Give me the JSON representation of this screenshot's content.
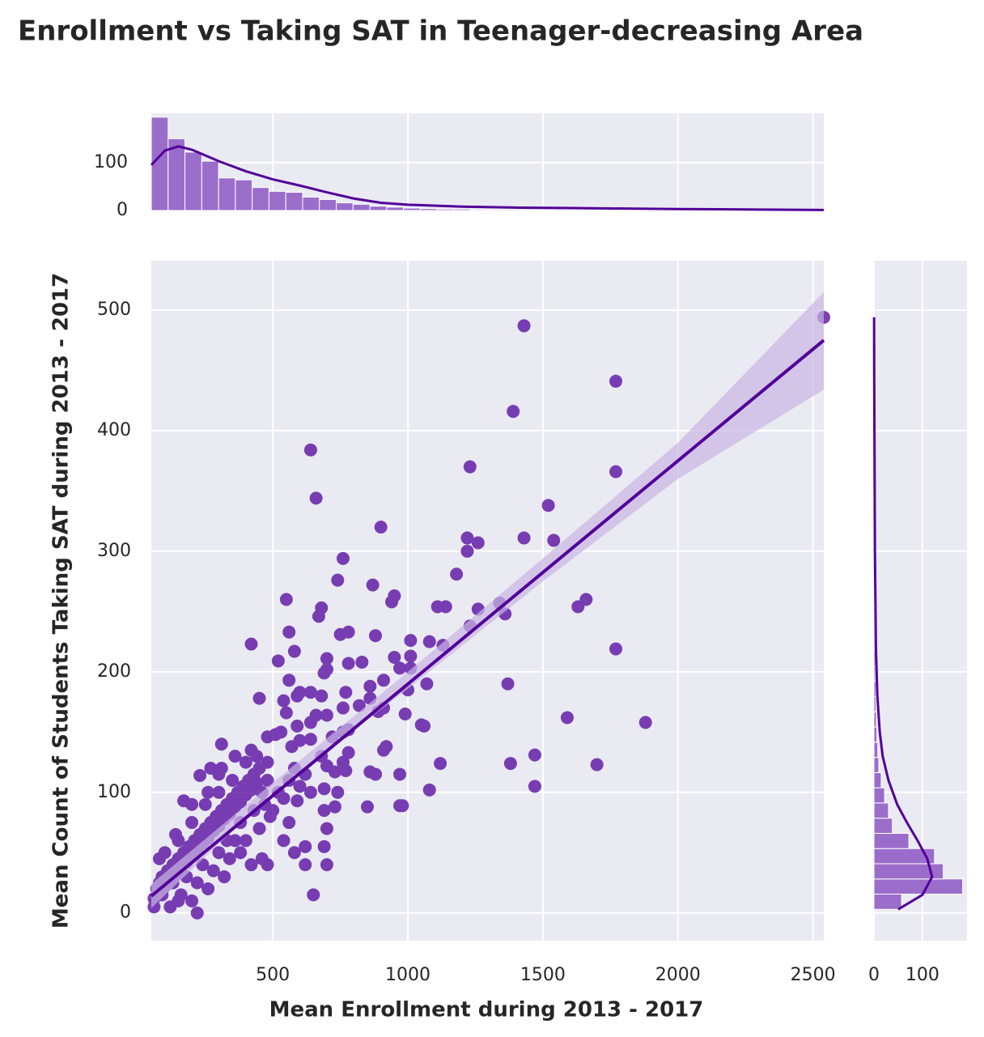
{
  "chart_data": {
    "type": "scatter",
    "title": "Enrollment vs Taking SAT in Teenager-decreasing Area",
    "xlabel": "Mean Enrollment during 2013 - 2017",
    "ylabel": "Mean Count of Students Taking SAT during 2013 - 2017",
    "color": "#5b11a3",
    "line_color": "#520099",
    "hist_color": "#9b6dcb",
    "band_color": "#c9b5e2",
    "grid": true,
    "xlim": [
      50,
      2540
    ],
    "ylim": [
      -23,
      541
    ],
    "xticks": [
      500,
      1000,
      1500,
      2000,
      2500
    ],
    "yticks": [
      0,
      100,
      200,
      300,
      400,
      500
    ],
    "x": [
      2540,
      1430,
      1770,
      1390,
      640,
      1230,
      1770,
      660,
      1520,
      900,
      1220,
      1430,
      1540,
      1260,
      1220,
      760,
      1180,
      740,
      870,
      1660,
      550,
      950,
      680,
      940,
      1110,
      1140,
      1260,
      1340,
      1630,
      1360,
      670,
      1230,
      560,
      880,
      780,
      750,
      1080,
      1010,
      1130,
      420,
      1770,
      700,
      830,
      950,
      1010,
      580,
      520,
      780,
      700,
      970,
      1010,
      560,
      600,
      640,
      1070,
      910,
      1370,
      690,
      860,
      1000,
      450,
      540,
      590,
      680,
      770,
      860,
      910,
      990,
      1050,
      1060,
      1590,
      1880,
      820,
      760,
      550,
      660,
      700,
      890,
      760,
      780,
      590,
      640,
      510,
      530,
      480,
      600,
      570,
      640,
      720,
      920,
      910,
      310,
      680,
      780,
      1120,
      1380,
      1470,
      1700,
      970,
      880,
      860,
      760,
      770,
      700,
      730,
      1080,
      1470,
      980,
      970,
      850,
      730,
      740,
      690,
      640,
      590,
      690,
      700,
      690,
      700,
      620,
      620,
      650,
      480,
      460,
      380,
      320,
      260,
      200,
      220,
      150,
      130,
      90,
      60,
      170,
      230,
      270,
      300,
      60,
      70,
      80,
      90,
      100,
      110,
      120,
      130,
      140,
      150,
      160,
      170,
      180,
      190,
      200,
      210,
      220,
      230,
      240,
      250,
      260,
      270,
      280,
      290,
      300,
      310,
      320,
      330,
      340,
      350,
      360,
      370,
      380,
      390,
      400,
      410,
      420,
      430,
      440,
      450,
      460,
      470,
      480,
      490,
      100,
      150,
      200,
      250,
      300,
      350,
      400,
      120,
      160,
      220,
      280,
      340,
      400,
      450,
      500,
      260,
      310,
      360,
      420,
      200,
      140,
      80,
      330,
      380,
      430,
      180,
      240,
      300,
      360,
      420,
      440,
      480,
      520,
      540,
      560,
      580,
      600,
      620,
      540,
      560,
      580
    ],
    "values": [
      494,
      487,
      441,
      416,
      384,
      370,
      366,
      344,
      338,
      320,
      311,
      311,
      309,
      307,
      300,
      294,
      281,
      276,
      272,
      260,
      260,
      263,
      253,
      258,
      254,
      254,
      252,
      257,
      254,
      248,
      246,
      238,
      233,
      230,
      233,
      231,
      225,
      226,
      222,
      223,
      219,
      211,
      208,
      212,
      213,
      217,
      209,
      207,
      202,
      203,
      203,
      193,
      183,
      183,
      190,
      193,
      190,
      199,
      188,
      185,
      178,
      176,
      180,
      180,
      183,
      178,
      170,
      165,
      156,
      155,
      162,
      158,
      172,
      170,
      166,
      164,
      164,
      167,
      150,
      152,
      155,
      158,
      148,
      150,
      146,
      143,
      138,
      144,
      146,
      138,
      135,
      140,
      130,
      133,
      124,
      124,
      131,
      123,
      115,
      115,
      117,
      125,
      118,
      122,
      117,
      102,
      105,
      89,
      89,
      88,
      88,
      100,
      103,
      100,
      93,
      85,
      70,
      55,
      40,
      40,
      55,
      15,
      40,
      45,
      50,
      30,
      20,
      10,
      0,
      10,
      25,
      15,
      5,
      93,
      114,
      120,
      115,
      12,
      20,
      25,
      30,
      22,
      35,
      28,
      40,
      32,
      45,
      38,
      50,
      42,
      55,
      48,
      60,
      52,
      65,
      58,
      70,
      62,
      75,
      68,
      80,
      72,
      85,
      78,
      90,
      82,
      95,
      88,
      100,
      92,
      105,
      98,
      110,
      102,
      115,
      108,
      120,
      100,
      90,
      110,
      80,
      50,
      60,
      75,
      90,
      100,
      110,
      125,
      5,
      15,
      25,
      35,
      45,
      60,
      70,
      85,
      100,
      120,
      130,
      135,
      90,
      65,
      45,
      60,
      75,
      85,
      30,
      40,
      50,
      60,
      40,
      130,
      125,
      100,
      95,
      110,
      120,
      105,
      115,
      60,
      75,
      50
    ],
    "regression": {
      "x": [
        50,
        2540
      ],
      "values": [
        14,
        475
      ],
      "ci_x": [
        50,
        500,
        1000,
        1500,
        2000,
        2540
      ],
      "ci_lower": [
        4,
        100,
        186,
        275,
        360,
        434
      ],
      "ci_upper": [
        24,
        108,
        200,
        294,
        390,
        515
      ]
    },
    "marginal_x": {
      "bins": [
        50,
        112.25,
        174.5,
        236.75,
        299,
        361.25,
        423.5,
        485.75,
        548,
        610.25,
        672.5,
        734.75,
        797,
        859.25,
        921.5,
        983.75,
        1046,
        1108.25,
        1170.5,
        1232.75,
        1295,
        1357.25,
        1419.5,
        1481.75,
        1544,
        1606.25,
        1668.5,
        1730.75,
        1793,
        1855.25,
        1917.5,
        1979.75,
        2042,
        2104.25,
        2166.5,
        2228.75,
        2291,
        2353.25,
        2415.5,
        2477.75,
        2540
      ],
      "counts": [
        195,
        150,
        122,
        103,
        68,
        64,
        48,
        40,
        38,
        28,
        23,
        16,
        13,
        9,
        7,
        5,
        4,
        3,
        3,
        2,
        2,
        2,
        1,
        1,
        2,
        1,
        1,
        1,
        1,
        0,
        1,
        0,
        0,
        0,
        0,
        0,
        0,
        0,
        0,
        1
      ],
      "ylim": [
        0,
        203
      ],
      "yticks": [
        0,
        100
      ],
      "kde_x": [
        50,
        100,
        150,
        200,
        250,
        300,
        400,
        500,
        600,
        700,
        800,
        900,
        1000,
        1200,
        1400,
        1600,
        1800,
        2000,
        2300,
        2540
      ],
      "kde_values": [
        95,
        125,
        134,
        127,
        115,
        103,
        82,
        65,
        52,
        38,
        25,
        16,
        12,
        8,
        6,
        5,
        4,
        3,
        2,
        1
      ]
    },
    "marginal_y": {
      "bins": [
        3,
        15.6,
        28.2,
        40.8,
        53.4,
        66,
        78.6,
        91.2,
        103.8,
        116.4,
        129,
        141.6,
        154.2,
        166.8,
        179.4,
        192,
        204.6,
        217.2,
        229.8,
        242.4,
        255,
        267.6,
        280.2,
        292.8,
        305.4,
        318,
        330.6,
        343.2,
        355.8,
        368.4,
        381,
        393.6,
        406.2,
        418.8,
        431.4,
        444,
        456.6,
        469.2,
        481.8,
        494.4
      ],
      "counts": [
        57,
        183,
        143,
        125,
        72,
        38,
        30,
        22,
        15,
        10,
        8,
        6,
        5,
        4,
        4,
        3,
        3,
        2,
        2,
        2,
        3,
        2,
        1,
        1,
        2,
        1,
        0,
        1,
        0,
        1,
        0,
        0,
        1,
        0,
        0,
        1,
        0,
        0,
        1
      ],
      "xlim": [
        0,
        192
      ],
      "xticks": [
        0,
        100
      ],
      "kde_y": [
        3,
        15,
        30,
        45,
        60,
        75,
        90,
        110,
        130,
        150,
        180,
        220,
        260,
        300,
        350,
        400,
        450,
        494
      ],
      "kde_values": [
        50,
        100,
        120,
        110,
        90,
        68,
        48,
        30,
        18,
        12,
        7,
        4,
        3,
        2,
        1.5,
        1,
        0.5,
        0.3
      ]
    }
  }
}
